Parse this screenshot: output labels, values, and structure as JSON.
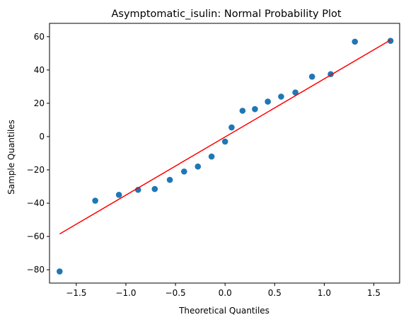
{
  "chart_data": {
    "type": "scatter",
    "title": "Asymptomatic_isulin: Normal Probability Plot",
    "xlabel": "Theoretical Quantiles",
    "ylabel": "Sample Quantiles",
    "xlim": [
      -1.77,
      1.76
    ],
    "ylim": [
      -88,
      68
    ],
    "xticks": [
      -1.5,
      -1.0,
      -0.5,
      0.0,
      0.5,
      1.0,
      1.5
    ],
    "xtick_labels": [
      "−1.5",
      "−1.0",
      "−0.5",
      "0.0",
      "0.5",
      "1.0",
      "1.5"
    ],
    "yticks": [
      -80,
      -60,
      -40,
      -20,
      0,
      20,
      40,
      60
    ],
    "ytick_labels": [
      "−80",
      "−60",
      "−40",
      "−20",
      "0",
      "20",
      "40",
      "60"
    ],
    "grid": false,
    "points": {
      "color": "#1f77b4",
      "x": [
        -1.668,
        -1.309,
        -1.07,
        -0.877,
        -0.709,
        -0.557,
        -0.413,
        -0.274,
        -0.136,
        0.0,
        0.066,
        0.176,
        0.301,
        0.431,
        0.565,
        0.709,
        0.877,
        1.065,
        1.309,
        1.668
      ],
      "y": [
        -81,
        -38.5,
        -35,
        -32,
        -31.5,
        -26,
        -21,
        -18,
        -12,
        -3,
        5.5,
        15.5,
        16.5,
        21,
        24,
        26.5,
        36,
        37.5,
        57,
        57.5
      ]
    },
    "fit_line": {
      "color": "#ff0000",
      "x": [
        -1.668,
        1.668
      ],
      "y": [
        -58.5,
        58
      ]
    }
  }
}
